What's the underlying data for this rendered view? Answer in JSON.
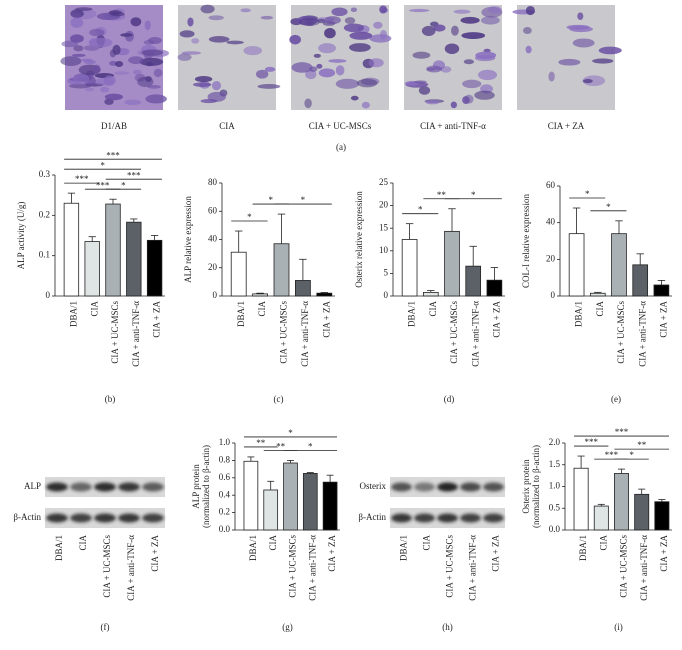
{
  "panel_a": {
    "labels": [
      "D1/AB",
      "CIA",
      "CIA + UC-MSCs",
      "CIA + anti-TNF-α",
      "CIA + ZA"
    ],
    "panel": "(a)"
  },
  "chart_data": [
    {
      "type": "bar",
      "panel": "(b)",
      "ylabel": "ALP activity (U/g)",
      "categories": [
        "DBA/1",
        "CIA",
        "CIA + UC-MSCs",
        "CIA + anti-TNF-α",
        "CIA + ZA"
      ],
      "values": [
        0.23,
        0.135,
        0.228,
        0.183,
        0.138
      ],
      "errors": [
        0.025,
        0.012,
        0.012,
        0.008,
        0.012
      ],
      "colors": [
        "#ffffff",
        "#dfe4e4",
        "#a9b1b5",
        "#5b6167",
        "#000000"
      ],
      "ylim": [
        0,
        0.3
      ],
      "yticks": [
        0,
        0.1,
        0.2,
        0.3
      ],
      "significance": [
        {
          "pair": [
            0,
            1
          ],
          "label": "***"
        },
        {
          "pair": [
            1,
            2
          ],
          "label": "***"
        },
        {
          "pair": [
            2,
            3
          ],
          "label": "*"
        },
        {
          "pair": [
            2,
            4
          ],
          "label": "***"
        },
        {
          "pair": [
            0,
            3
          ],
          "label": "*"
        },
        {
          "pair": [
            0,
            4
          ],
          "label": "***"
        }
      ]
    },
    {
      "type": "bar",
      "panel": "(c)",
      "ylabel": "ALP relative expression",
      "categories": [
        "DBA/1",
        "CIA",
        "CIA + UC-MSCs",
        "CIA + anti-TNF-α",
        "CIA + ZA"
      ],
      "values": [
        31,
        1.5,
        37,
        11,
        2
      ],
      "errors": [
        15,
        0.5,
        21,
        15,
        0.5
      ],
      "colors": [
        "#ffffff",
        "#dfe4e4",
        "#a9b1b5",
        "#5b6167",
        "#000000"
      ],
      "ylim": [
        0,
        80
      ],
      "yticks": [
        0,
        20,
        40,
        60,
        80
      ],
      "significance": [
        {
          "pair": [
            0,
            1
          ],
          "label": "*"
        },
        {
          "pair": [
            1,
            2
          ],
          "label": "*"
        },
        {
          "pair": [
            2,
            4
          ],
          "label": "*"
        }
      ]
    },
    {
      "type": "bar",
      "panel": "(d)",
      "ylabel": "Osterix relative expression",
      "categories": [
        "DBA/1",
        "CIA",
        "CIA + UC-MSCs",
        "CIA + anti-TNF-α",
        "CIA + ZA"
      ],
      "values": [
        12.5,
        0.8,
        14.3,
        6.6,
        3.5
      ],
      "errors": [
        3.5,
        0.4,
        5,
        4.4,
        2.8
      ],
      "colors": [
        "#ffffff",
        "#dfe4e4",
        "#a9b1b5",
        "#5b6167",
        "#000000"
      ],
      "ylim": [
        0,
        25
      ],
      "yticks": [
        0,
        5,
        10,
        15,
        20,
        25
      ],
      "significance": [
        {
          "pair": [
            0,
            1
          ],
          "label": "*"
        },
        {
          "pair": [
            1,
            2
          ],
          "label": "**"
        },
        {
          "pair": [
            2,
            4
          ],
          "label": "*"
        }
      ]
    },
    {
      "type": "bar",
      "panel": "(e)",
      "ylabel": "COL-I relative expression",
      "categories": [
        "DBA/1",
        "CIA",
        "CIA + UC-MSCs",
        "CIA + anti-TNF-α",
        "CIA + ZA"
      ],
      "values": [
        34,
        1.5,
        34,
        17,
        6
      ],
      "errors": [
        14,
        0.5,
        7,
        6,
        2.5
      ],
      "colors": [
        "#ffffff",
        "#dfe4e4",
        "#a9b1b5",
        "#5b6167",
        "#000000"
      ],
      "ylim": [
        0,
        60
      ],
      "yticks": [
        0,
        20,
        40,
        60
      ],
      "significance": [
        {
          "pair": [
            0,
            1
          ],
          "label": "*"
        },
        {
          "pair": [
            1,
            2
          ],
          "label": "*"
        }
      ]
    },
    {
      "type": "bar",
      "panel": "(g)",
      "ylabel": [
        "ALP protein",
        "(normalized to β-actin)"
      ],
      "categories": [
        "DBA/1",
        "CIA",
        "CIA + UC-MSCs",
        "CIA + anti-TNF-α",
        "CIA + ZA"
      ],
      "values": [
        0.79,
        0.46,
        0.77,
        0.65,
        0.55
      ],
      "errors": [
        0.05,
        0.1,
        0.03,
        0.01,
        0.08
      ],
      "colors": [
        "#ffffff",
        "#dfe4e4",
        "#a9b1b5",
        "#5b6167",
        "#000000"
      ],
      "ylim": [
        0,
        1.0
      ],
      "yticks": [
        {
          "value": 0,
          "label": "0.0"
        },
        0.2,
        0.4,
        0.6,
        0.8,
        {
          "value": 1.0,
          "label": "1.0"
        }
      ],
      "significance": [
        {
          "pair": [
            0,
            1
          ],
          "label": "**"
        },
        {
          "pair": [
            1,
            2
          ],
          "label": "**"
        },
        {
          "pair": [
            2,
            4
          ],
          "label": "*"
        },
        {
          "pair": [
            0,
            4
          ],
          "label": "*"
        }
      ]
    },
    {
      "type": "bar",
      "panel": "(i)",
      "ylabel": [
        "Osterix protein",
        "(normalized to β-actin)"
      ],
      "categories": [
        "DBA/1",
        "CIA",
        "CIA + UC-MSCs",
        "CIA + anti-TNF-α",
        "CIA + ZA"
      ],
      "values": [
        1.42,
        0.55,
        1.3,
        0.82,
        0.65
      ],
      "errors": [
        0.28,
        0.04,
        0.1,
        0.12,
        0.05
      ],
      "colors": [
        "#ffffff",
        "#dfe4e4",
        "#a9b1b5",
        "#5b6167",
        "#000000"
      ],
      "ylim": [
        0,
        2.0
      ],
      "yticks": [
        {
          "value": 0,
          "label": "0.0"
        },
        0.5,
        {
          "value": 1.0,
          "label": "1.0"
        },
        1.5,
        {
          "value": 2.0,
          "label": "2.0"
        }
      ],
      "significance": [
        {
          "pair": [
            0,
            1
          ],
          "label": "***"
        },
        {
          "pair": [
            1,
            2
          ],
          "label": "***"
        },
        {
          "pair": [
            2,
            3
          ],
          "label": "*"
        },
        {
          "pair": [
            2,
            4
          ],
          "label": "**"
        },
        {
          "pair": [
            0,
            4
          ],
          "label": "***"
        }
      ]
    }
  ],
  "blots": [
    {
      "panel": "(f)",
      "bands": [
        "ALP",
        "β-Actin"
      ],
      "lanes": [
        "DBA/1",
        "CIA",
        "CIA + UC-MSCs",
        "CIA + anti-TNF-α",
        "CIA + ZA"
      ]
    },
    {
      "panel": "(h)",
      "bands": [
        "Osterix",
        "β-Actin"
      ],
      "lanes": [
        "DBA/1",
        "CIA",
        "CIA + UC-MSCs",
        "CIA + anti-TNF-α",
        "CIA + ZA"
      ]
    }
  ]
}
